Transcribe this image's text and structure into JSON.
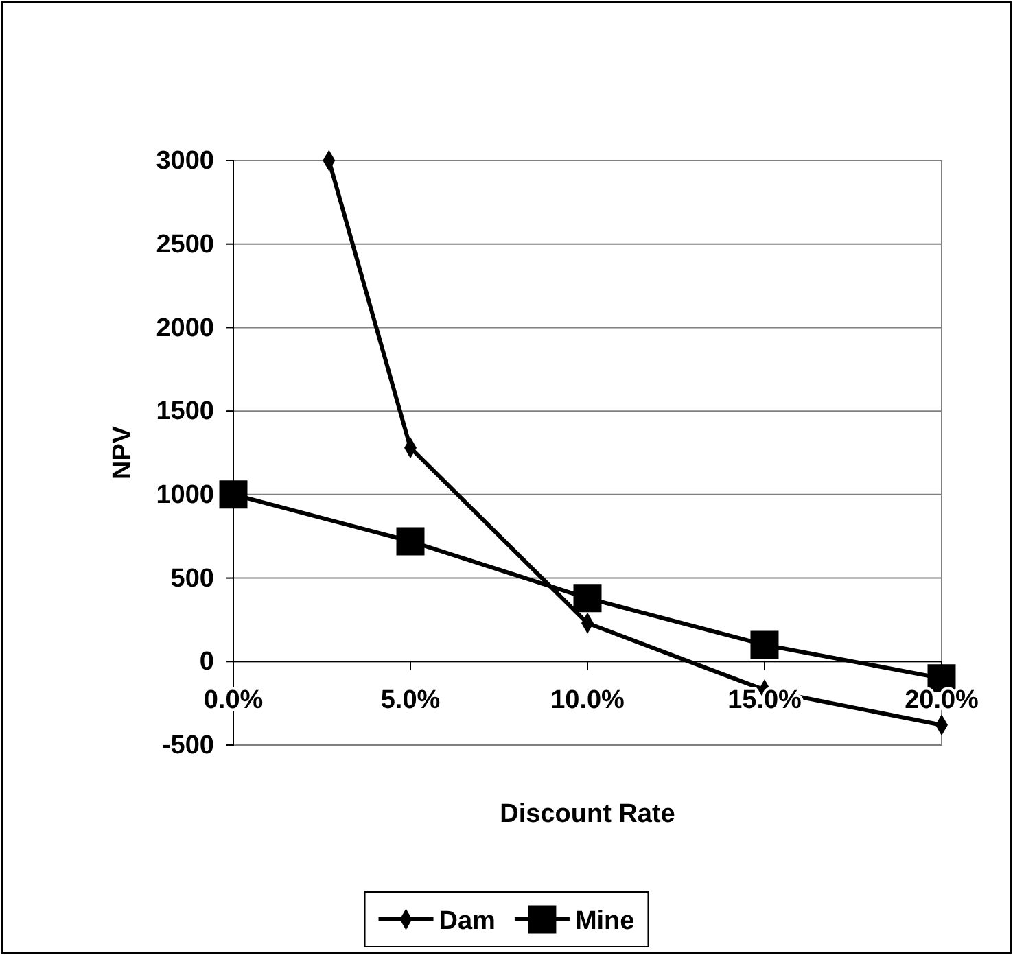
{
  "chart_data": {
    "type": "line",
    "xlabel": "Discount Rate",
    "ylabel": "NPV",
    "xlim": [
      0,
      20
    ],
    "xticks": [
      {
        "value": 0,
        "label": "0.0%"
      },
      {
        "value": 5,
        "label": "5.0%"
      },
      {
        "value": 10,
        "label": "10.0%"
      },
      {
        "value": 15,
        "label": "15.0%"
      },
      {
        "value": 20,
        "label": "20.0%"
      }
    ],
    "ylim": [
      -500,
      3000
    ],
    "yticks": [
      -500,
      0,
      500,
      1000,
      1500,
      2000,
      2500,
      3000
    ],
    "grid": "y",
    "legend": "bottom",
    "line_style": "solid",
    "series": [
      {
        "name": "Dam",
        "color": "#000000",
        "marker": "diamond",
        "x": [
          2.7,
          5,
          10,
          15,
          20
        ],
        "values": [
          3000,
          1280,
          230,
          -170,
          -380
        ]
      },
      {
        "name": "Mine",
        "color": "#000000",
        "marker": "square",
        "x": [
          0,
          5,
          10,
          15,
          20
        ],
        "values": [
          1000,
          720,
          380,
          100,
          -100
        ]
      }
    ]
  }
}
